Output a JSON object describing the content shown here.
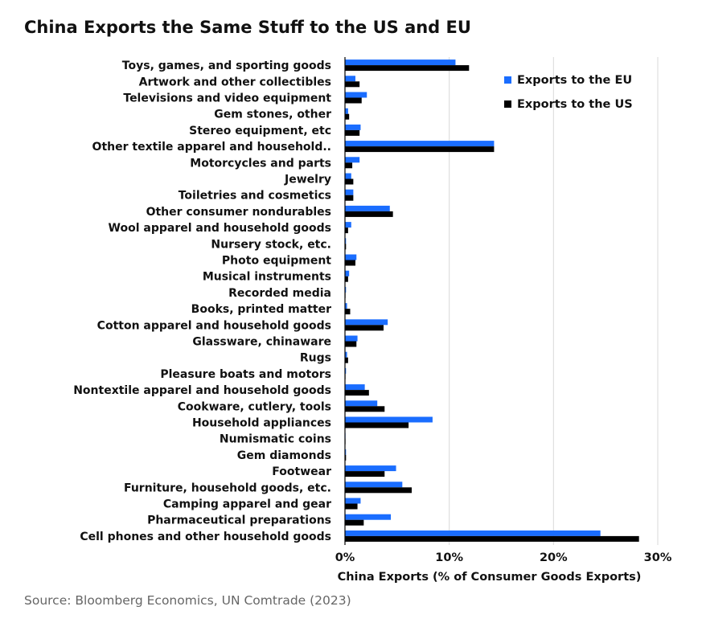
{
  "title": "China Exports the Same Stuff to the US and EU",
  "source": "Source: Bloomberg Economics, UN Comtrade (2023)",
  "chart_data": {
    "type": "bar",
    "orientation": "horizontal",
    "categories": [
      "Toys, games, and sporting goods",
      "Artwork and other collectibles",
      "Televisions and video equipment",
      "Gem stones, other",
      "Stereo equipment, etc",
      "Other textile apparel and household..",
      "Motorcycles and parts",
      "Jewelry",
      "Toiletries and cosmetics",
      "Other consumer nondurables",
      "Wool apparel and household goods",
      "Nursery stock, etc.",
      "Photo equipment",
      "Musical instruments",
      "Recorded media",
      "Books, printed matter",
      "Cotton apparel and household goods",
      "Glassware, chinaware",
      "Rugs",
      "Pleasure boats and motors",
      "Nontextile apparel and household goods",
      "Cookware, cutlery, tools",
      "Household appliances",
      "Numismatic coins",
      "Gem diamonds",
      "Footwear",
      "Furniture, household goods, etc.",
      "Camping apparel and gear",
      "Pharmaceutical preparations",
      "Cell phones and other household goods"
    ],
    "series": [
      {
        "name": "Exports to the EU",
        "color": "#1a6dff",
        "values": [
          10.6,
          1.0,
          2.1,
          0.3,
          1.5,
          14.3,
          1.4,
          0.6,
          0.8,
          4.3,
          0.6,
          0.1,
          1.1,
          0.4,
          0.1,
          0.2,
          4.1,
          1.2,
          0.2,
          0.1,
          1.9,
          3.1,
          8.4,
          0.05,
          0.1,
          4.9,
          5.5,
          1.5,
          4.4,
          24.5
        ]
      },
      {
        "name": "Exports to the US",
        "color": "#000000",
        "values": [
          11.9,
          1.4,
          1.6,
          0.4,
          1.4,
          14.3,
          0.7,
          0.8,
          0.8,
          4.6,
          0.3,
          0.1,
          1.0,
          0.3,
          0.05,
          0.5,
          3.7,
          1.1,
          0.3,
          0.05,
          2.3,
          3.8,
          6.1,
          0.05,
          0.1,
          3.8,
          6.4,
          1.2,
          1.8,
          28.2
        ]
      }
    ],
    "xlabel": "China Exports (% of Consumer Goods Exports)",
    "xlim": [
      0,
      30
    ],
    "xticks": [
      "0%",
      "10%",
      "20%",
      "30%"
    ],
    "xtick_values": [
      0,
      10,
      20,
      30
    ],
    "grid": "vertical",
    "legend_position": "top-right"
  }
}
